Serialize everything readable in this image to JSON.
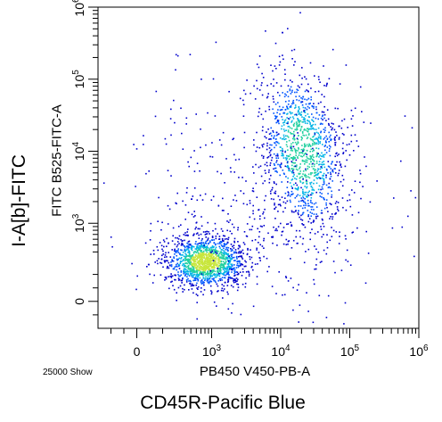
{
  "chart_data": {
    "type": "scatter",
    "axis_scale": "biexponential",
    "outer_xlabel": "CD45R-Pacific Blue",
    "outer_ylabel": "I-A[b]-FITC",
    "xlabel": "PB450 V450-PB-A",
    "ylabel": "FITC B525-FITC-A",
    "event_note": "25000 Show",
    "x_ticks": [
      {
        "value": 0,
        "label": "0"
      },
      {
        "value": 1000,
        "label": "10",
        "exp": "3"
      },
      {
        "value": 10000,
        "label": "10",
        "exp": "4"
      },
      {
        "value": 100000,
        "label": "10",
        "exp": "5"
      },
      {
        "value": 1000000,
        "label": "10",
        "exp": "6"
      }
    ],
    "y_ticks": [
      {
        "value": 0,
        "label": "0"
      },
      {
        "value": 1000,
        "label": "10",
        "exp": "3"
      },
      {
        "value": 10000,
        "label": "10",
        "exp": "4"
      },
      {
        "value": 100000,
        "label": "10",
        "exp": "5"
      },
      {
        "value": 1000000,
        "label": "10",
        "exp": "6"
      }
    ],
    "xlim": [
      -300,
      1000000
    ],
    "ylim": [
      -200,
      1000000
    ],
    "grid": false,
    "colormap": [
      "#0000cc",
      "#0055ff",
      "#00b4e6",
      "#22d0a0",
      "#c8e63c"
    ],
    "populations": [
      {
        "x": 800,
        "y": 300,
        "count": 14000
      },
      {
        "x": 20000,
        "y": 10000,
        "count": 9000
      },
      {
        "x": 5000,
        "y": 2000,
        "count": 2000
      }
    ]
  }
}
